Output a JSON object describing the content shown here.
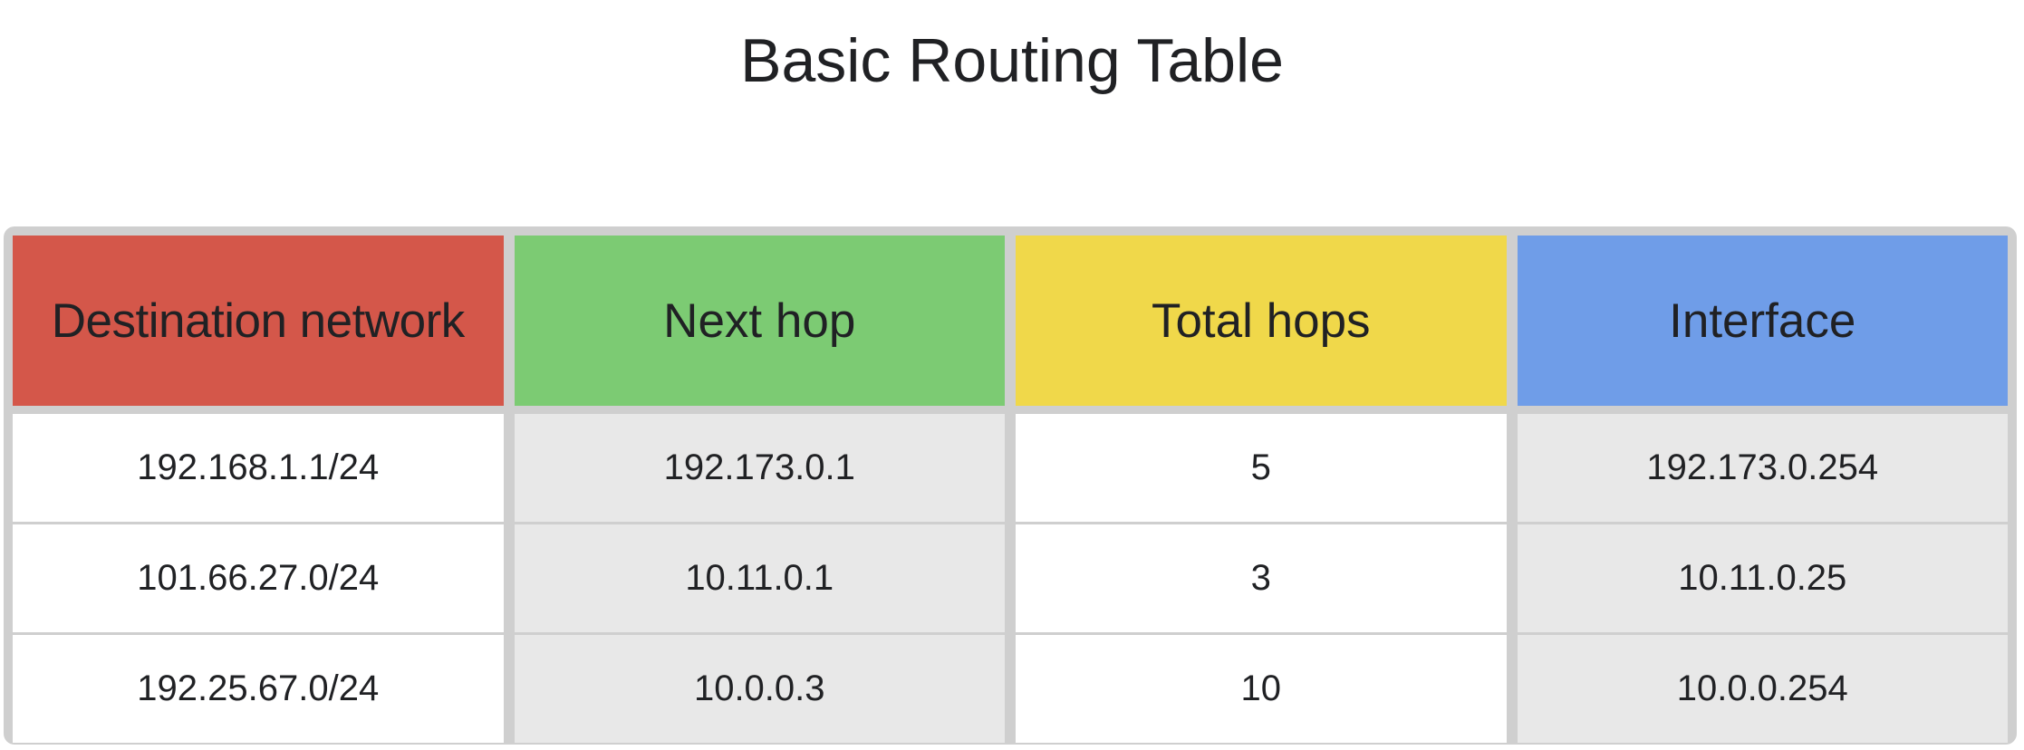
{
  "chart_data": {
    "type": "table",
    "title": "Basic Routing Table",
    "columns": [
      {
        "label": "Destination network",
        "color": "#d4574a"
      },
      {
        "label": "Next hop",
        "color": "#7ccb73"
      },
      {
        "label": "Total hops",
        "color": "#f0d84a"
      },
      {
        "label": "Interface",
        "color": "#6f9de8"
      }
    ],
    "rows": [
      [
        "192.168.1.1/24",
        "192.173.0.1",
        "5",
        "192.173.0.254"
      ],
      [
        "101.66.27.0/24",
        "10.11.0.1",
        "3",
        "10.11.0.25"
      ],
      [
        "192.25.67.0/24",
        "10.0.0.3",
        "10",
        "10.0.0.254"
      ]
    ]
  }
}
